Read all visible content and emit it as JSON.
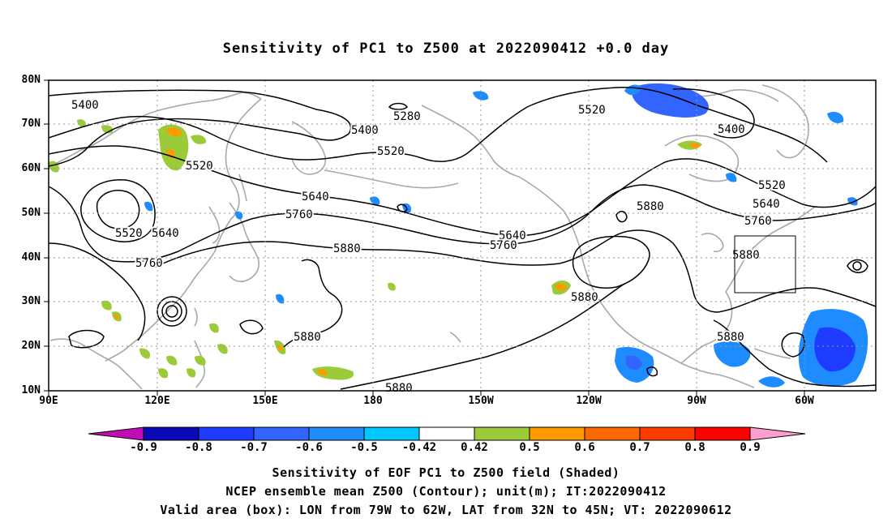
{
  "title": "Sensitivity of PC1 to Z500 at 2022090412 +0.0 day",
  "axes": {
    "lat_labels": [
      "80N",
      "70N",
      "60N",
      "50N",
      "40N",
      "30N",
      "20N",
      "10N"
    ],
    "lon_labels": [
      "90E",
      "120E",
      "150E",
      "180",
      "150W",
      "120W",
      "90W",
      "60W"
    ]
  },
  "contour_labels": [
    {
      "name": "contour-label-5400-a",
      "text": "5400"
    },
    {
      "name": "contour-label-5280",
      "text": "5280"
    },
    {
      "name": "contour-label-5400-b",
      "text": "5400"
    },
    {
      "name": "contour-label-5520-a",
      "text": "5520"
    },
    {
      "name": "contour-label-5520-b",
      "text": "5520"
    },
    {
      "name": "contour-label-5640-a",
      "text": "5640"
    },
    {
      "name": "contour-label-5760-a",
      "text": "5760"
    },
    {
      "name": "contour-label-5520-c",
      "text": "5520"
    },
    {
      "name": "contour-label-5640-b",
      "text": "5640"
    },
    {
      "name": "contour-label-5760-b",
      "text": "5760"
    },
    {
      "name": "contour-label-5880-a",
      "text": "5880"
    },
    {
      "name": "contour-label-5640-c",
      "text": "5640"
    },
    {
      "name": "contour-label-5760-c",
      "text": "5760"
    },
    {
      "name": "contour-label-5520-d",
      "text": "5520"
    },
    {
      "name": "contour-label-5400-c",
      "text": "5400"
    },
    {
      "name": "contour-label-5520-e",
      "text": "5520"
    },
    {
      "name": "contour-label-5640-d",
      "text": "5640"
    },
    {
      "name": "contour-label-5760-d",
      "text": "5760"
    },
    {
      "name": "contour-label-5880-b",
      "text": "5880"
    },
    {
      "name": "contour-label-5880-c",
      "text": "5880"
    },
    {
      "name": "contour-label-5880-d",
      "text": "5880"
    },
    {
      "name": "contour-label-5880-e",
      "text": "5880"
    },
    {
      "name": "contour-label-5880-f",
      "text": "5880"
    },
    {
      "name": "contour-label-5880-g",
      "text": "5880"
    }
  ],
  "valid_area_box": {
    "lon_from": "79W",
    "lon_to": "62W",
    "lat_from": "32N",
    "lat_to": "45N"
  },
  "colorbar": {
    "labels": [
      "-0.9",
      "-0.8",
      "-0.7",
      "-0.6",
      "-0.5",
      "-0.42",
      "0.42",
      "0.5",
      "0.6",
      "0.7",
      "0.8",
      "0.9"
    ],
    "colors": [
      "#c00cb4",
      "#0a0ab4",
      "#1e3cff",
      "#3264ff",
      "#1e8cff",
      "#00c8ff",
      "#ffffff",
      "#9ccb3a",
      "#ff9900",
      "#ff6a00",
      "#ff3c00",
      "#ff0000",
      "#ff9fcf"
    ]
  },
  "footer": {
    "line1": "Sensitivity of EOF PC1 to Z500 field (Shaded)",
    "line2": "NCEP ensemble mean Z500 (Contour); unit(m); IT:2022090412",
    "line3": "Valid area (box): LON from 79W to 62W, LAT from 32N to 45N; VT: 2022090612"
  }
}
